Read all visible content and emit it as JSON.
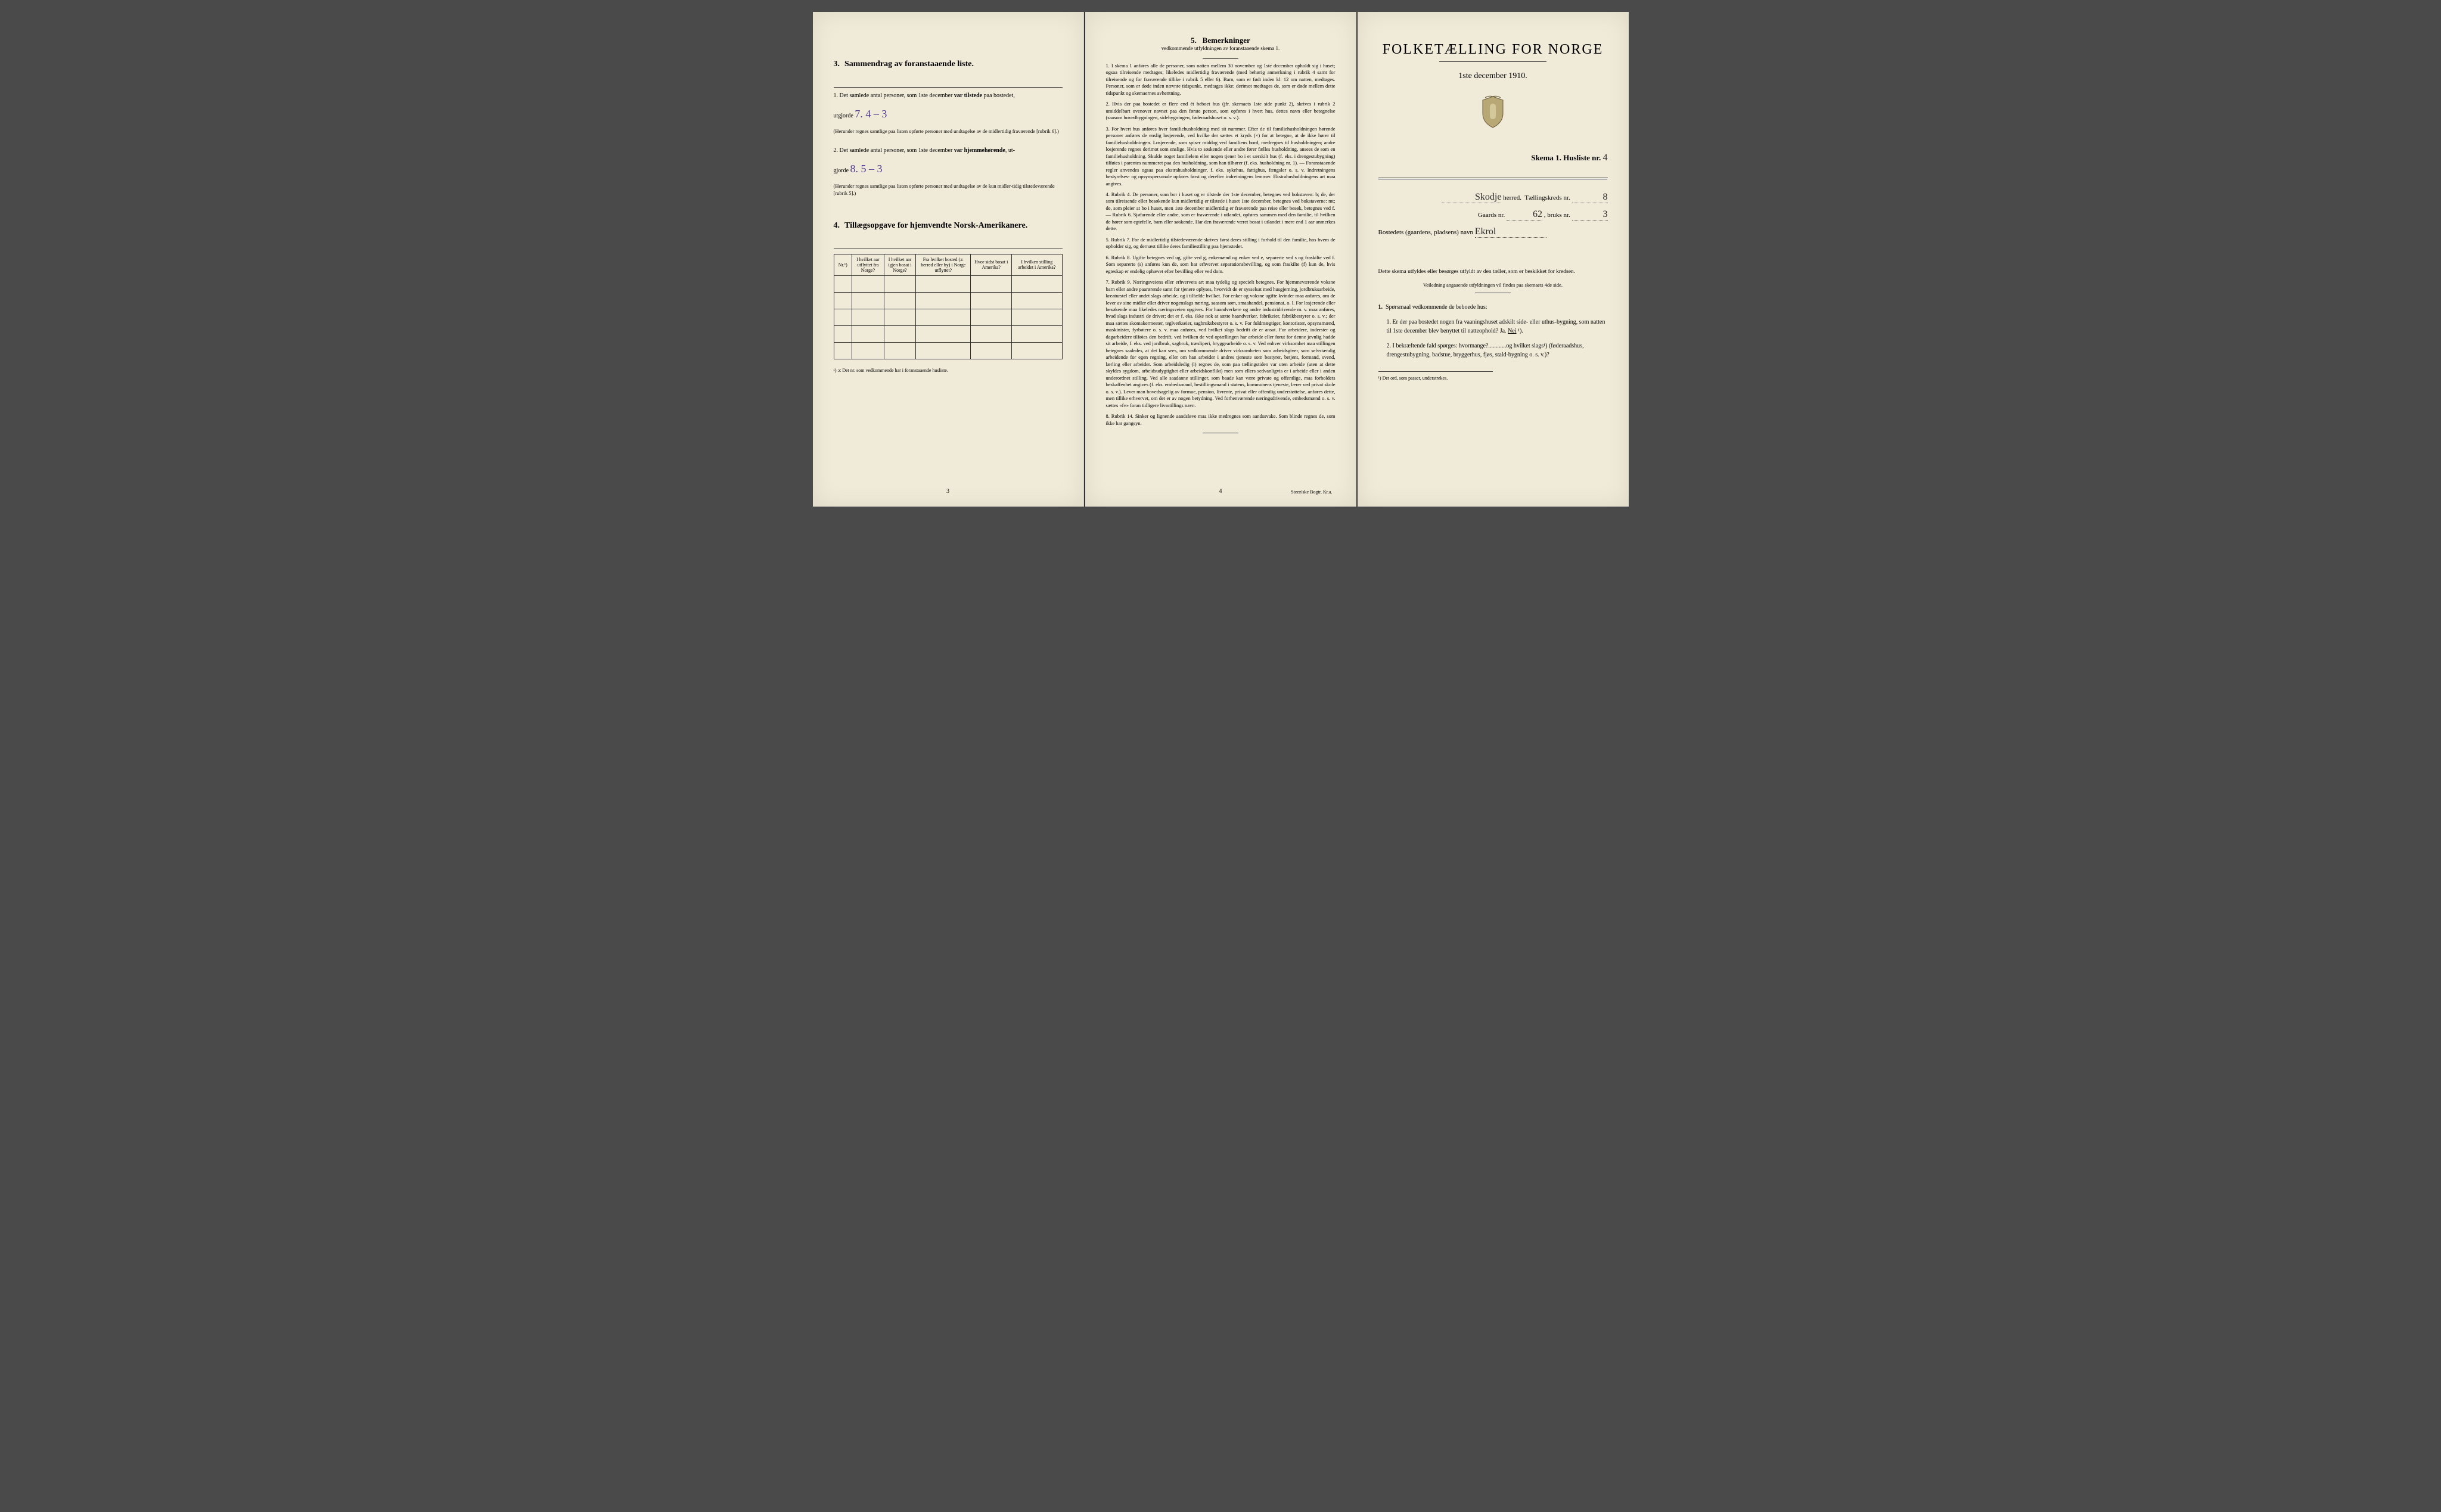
{
  "left": {
    "sec3_num": "3.",
    "sec3_title": "Sammendrag av foranstaaende liste.",
    "q1_prefix": "1. Det samlede antal personer, som 1ste december",
    "q1_bold": "var tilstede",
    "q1_suffix": "paa bostedet,",
    "q1_line2a": "utgjorde",
    "q1_hand": "7.   4 – 3",
    "q1_note": "(Herunder regnes samtlige paa listen opførte personer med undtagelse av de midlertidig fraværende [rubrik 6].)",
    "q2_prefix": "2. Det samlede antal personer, som 1ste december",
    "q2_bold": "var hjemmehørende",
    "q2_suffix": ", ut-",
    "q2_line2a": "gjorde",
    "q2_hand": "8.   5 – 3",
    "q2_note": "(Herunder regnes samtlige paa listen opførte personer med undtagelse av de kun midler-tidig tilstedeværende [rubrik 5].)",
    "sec4_num": "4.",
    "sec4_title": "Tillægsopgave for hjemvendte Norsk-Amerikanere.",
    "table": {
      "headers": [
        "Nr.¹)",
        "I hvilket aar utflyttet fra Norge?",
        "I hvilket aar igjen bosat i Norge?",
        "Fra hvilket bosted (ɔ: herred eller by) i Norge utflyttet?",
        "Hvor sidst bosat i Amerika?",
        "I hvilken stilling arbeidet i Amerika?"
      ],
      "rows": 5
    },
    "footnote": "¹) ɔ: Det nr. som vedkommende har i foranstaaende husliste.",
    "page_num": "3"
  },
  "middle": {
    "title_num": "5.",
    "title": "Bemerkninger",
    "subtitle": "vedkommende utfyldningen av foranstaaende skema 1.",
    "items": [
      "I skema 1 anføres alle de personer, som natten mellem 30 november og 1ste december opholdt sig i huset; ogsaa tilreisende medtages; likeledes midlertidig fraværende (med behørig anmerkning i rubrik 4 samt for tilreisende og for fraværende tillike i rubrik 5 eller 6). Barn, som er født inden kl. 12 om natten, medtages. Personer, som er døde inden nævnte tidspunkt, medtages ikke; derimot medtages de, som er døde mellem dette tidspunkt og skemaernes avhentning.",
      "Hvis der paa bostedet er flere end ét beboet hus (jfr. skemaets 1ste side punkt 2), skrives i rubrik 2 umiddelbart ovenover navnet paa den første person, som opføres i hvert hus, dettes navn eller betegnelse (saasom hovedbygningen, sidebygningen, føderaadshuset o. s. v.).",
      "For hvert hus anføres hver familiehusholdning med sit nummer. Efter de til familiehusholdningen hørende personer anføres de enslig losjerende, ved hvilke der sættes et kryds (×) for at betegne, at de ikke hører til familiehusholdningen. Losjerende, som spiser middag ved familiens bord, medregnes til husholdningen; andre losjerende regnes derimot som enslige. Hvis to søskende eller andre fører fælles husholdning, ansees de som en familiehusholdning. Skulde noget familielem eller nogen tjener bo i et særskilt hus (f. eks. i drengestubygning) tilføies i parentes nummeret paa den husholdning, som han tilhører (f. eks. husholdning nr. 1). — Foranstaaende regler anvendes ogsaa paa ekstrahusholdninger, f. eks. sykehus, fattighus, fængsler o. s. v. Indretningens bestyrelses- og opsynspersonale opføres først og derefter indretningens lemmer. Ekstrahusholdningens art maa angives.",
      "Rubrik 4. De personer, som bor i huset og er tilstede der 1ste december, betegnes ved bokstaven: b; de, der som tilreisende eller besøkende kun midlertidig er tilstede i huset 1ste december, betegnes ved bokstaverne: mt; de, som pleier at bo i huset, men 1ste december midlertidig er fraværende paa reise eller besøk, betegnes ved f. — Rubrik 6. Sjøfarende eller andre, som er fraværende i utlandet, opføres sammen med den familie, til hvilken de hører som egtefelle, barn eller søskende. Har den fraværende været bosat i utlandet i mere end 1 aar anmerkes dette.",
      "Rubrik 7. For de midlertidig tilstedeværende skrives først deres stilling i forhold til den familie, hos hvem de opholder sig, og dernæst tillike deres familiestilling paa hjemstedet.",
      "Rubrik 8. Ugifte betegnes ved ug, gifte ved g, enkemænd og enker ved e, separerte ved s og fraskilte ved f. Som separerte (s) anføres kun de, som har erhvervet separationsbevilling, og som fraskilte (f) kun de, hvis egteskap er endelig ophævet efter bevilling eller ved dom.",
      "Rubrik 9. Næringsveiens eller erhvervets art maa tydelig og specielt betegnes. For hjemmeværende voksne barn eller andre paarørende samt for tjenere oplyses, hvorvidt de er sysselsat med husgjerning, jordbruksarbeide, kreaturstel eller andet slags arbeide, og i tilfælde hvilket. For enker og voksne ugifte kvinder maa anføres, om de lever av sine midler eller driver nogenslags næring, saasom søm, smaahandel, pensionat, o. l. For losjerende eller besøkende maa likeledes næringsveien opgives. For haandverkere og andre industridrivende m. v. maa anføres, hvad slags industri de driver; det er f. eks. ikke nok at sætte haandverker, fabrikeier, fabrikbestyrer o. s. v.; der maa sættes skomakermester, teglverkseier, sagbruksbestyrer o. s. v. For fuldmægtiger, kontorister, opsynsmænd, maskinister, fyrbøtere o. s. v. maa anføres, ved hvilket slags bedrift de er ansat. For arbeidere, inderster og dagarbeidere tilføies den bedrift, ved hvilken de ved optællingen har arbeide eller forut for denne jevnlig hadde sit arbeide, f. eks. ved jordbruk, sagbruk, træsliperi, bryggearbeide o. s. v. Ved enhver virksomhet maa stillingen betegnes saaledes, at det kan sees, om vedkommende driver virksomheten som arbeidsgiver, som selvstændig arbeidende for egen regning, eller om han arbeider i andres tjeneste som bestyrer, betjent, formand, svend, lærling eller arbeider. Som arbeidsledig (l) regnes de, som paa tællingstiden var uten arbeide (uten at dette skyldes sygdom, arbeidsudygtighet eller arbeidskonflikt) men som ellers sedvanligvis er i arbeide eller i anden underordnet stilling. Ved alle saadanne stillinger, som baade kan være private og offentlige, maa forholdets beskaffenhet angives (f. eks. embedsmand, bestillingsmand i statens, kommunens tjeneste, lærer ved privat skole o. s. v.). Lever man hovedsagelig av formue, pension, livrente, privat eller offentlig understøttelse, anføres dette, men tillike erhvervet, om det er av nogen betydning. Ved forhenværende næringsdrivende, embedsmænd o. s. v. sættes «fv» foran tidligere livsstillings navn.",
      "Rubrik 14. Sinker og lignende aandsløve maa ikke medregnes som aandssvake. Som blinde regnes de, som ikke har gangsyn."
    ],
    "page_num": "4",
    "imprint": "Steen'ske Bogtr. Kr.a."
  },
  "right": {
    "main_title": "FOLKETÆLLING FOR NORGE",
    "subtitle": "1ste december 1910.",
    "skema_label": "Skema 1.  Husliste nr.",
    "husliste_nr": "4",
    "herred_name": "Skodje",
    "herred_label": "herred.",
    "kreds_label": "Tællingskreds nr.",
    "kreds_nr": "8",
    "gaards_label": "Gaards nr.",
    "gaards_nr": "62",
    "bruks_label": ", bruks nr.",
    "bruks_nr": "3",
    "bosted_label": "Bostedets (gaardens, pladsens) navn",
    "bosted_name": "Ekrol",
    "instr": "Dette skema utfyldes eller besørges utfyldt av den tæller, som er beskikket for kredsen.",
    "instr2": "Veiledning angaaende utfyldningen vil findes paa skemaets 4de side.",
    "q_header_num": "1.",
    "q_header": "Spørsmaal vedkommende de beboede hus:",
    "q1": "1. Er der paa bostedet nogen fra vaaningshuset adskilt side- eller uthus-bygning, som natten til 1ste december blev benyttet til natteophold?   Ja.   ",
    "q1_nei": "Nei",
    "q1_sup": "¹).",
    "q2": "2. I bekræftende fald spørges: hvormange?............og hvilket slags¹) (føderaadshus, drengestubygning, badstue, bryggerhus, fjøs, stald-bygning o. s. v.)?",
    "footnote": "¹) Det ord, som passer, understrekes."
  },
  "colors": {
    "paper": "#f0ead8",
    "ink": "#1a1a1a",
    "handwriting": "#4b3a8f",
    "bg": "#4a4a4a"
  }
}
